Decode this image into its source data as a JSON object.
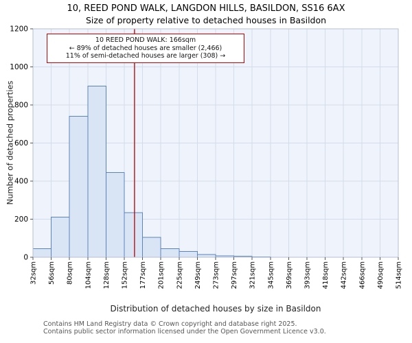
{
  "chart_data": {
    "type": "bar",
    "title": "10, REED POND WALK, LANGDON HILLS, BASILDON, SS16 6AX",
    "subtitle": "Size of property relative to detached houses in Basildon",
    "categories": [
      "32sqm",
      "56sqm",
      "80sqm",
      "104sqm",
      "128sqm",
      "152sqm",
      "177sqm",
      "201sqm",
      "225sqm",
      "249sqm",
      "273sqm",
      "297sqm",
      "321sqm",
      "345sqm",
      "369sqm",
      "393sqm",
      "418sqm",
      "442sqm",
      "466sqm",
      "490sqm",
      "514sqm"
    ],
    "values": [
      45,
      210,
      740,
      900,
      445,
      235,
      105,
      45,
      30,
      15,
      8,
      5,
      2,
      0,
      0,
      0,
      0,
      0,
      0,
      0
    ],
    "xlabel": "Distribution of detached houses by size in Basildon",
    "ylabel": "Number of detached properties",
    "ylim": [
      0,
      1200
    ],
    "yticks": [
      0,
      200,
      400,
      600,
      800,
      1000,
      1200
    ],
    "grid": true,
    "marker": {
      "label": "166sqm",
      "value_sqm": 166,
      "x_min": 32,
      "x_max": 514,
      "color": "#b30000"
    },
    "colors": {
      "bar_fill": "#d9e4f5",
      "bar_stroke": "#5b83c0",
      "grid": "#d4dcea",
      "plot_bg": "#eff3fb",
      "border": "#b6bfd0",
      "marker_line": "#b30000",
      "annotation_border": "#cc0000"
    }
  },
  "annotation": {
    "line1": "10 REED POND WALK: 166sqm",
    "line2": "← 89% of detached houses are smaller (2,466)",
    "line3": "11% of semi-detached houses are larger (308) →"
  },
  "footer": {
    "line1": "Contains HM Land Registry data © Crown copyright and database right 2025.",
    "line2": "Contains public sector information licensed under the Open Government Licence v3.0."
  }
}
